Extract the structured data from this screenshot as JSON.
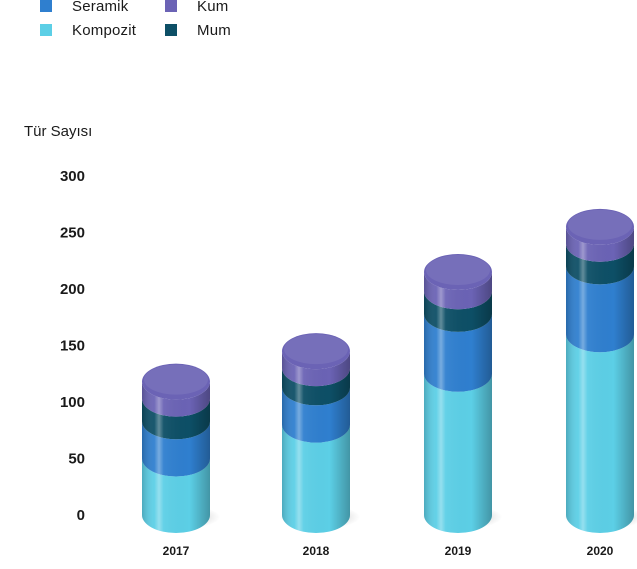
{
  "chart_data": {
    "type": "bar",
    "style": "stacked-3d-cylinder",
    "title": "",
    "xlabel": "",
    "ylabel": "Tür Sayısı",
    "categories": [
      "2017",
      "2018",
      "2019",
      "2020"
    ],
    "ylim": [
      0,
      300
    ],
    "yticks": [
      "0",
      "50",
      "100",
      "150",
      "200",
      "250",
      "300"
    ],
    "series": [
      {
        "name": "Kompozit",
        "color": "#5ccfe6",
        "values": [
          50,
          80,
          125,
          160
        ]
      },
      {
        "name": "Seramik",
        "color": "#2f7fcf",
        "values": [
          33,
          33,
          53,
          60
        ]
      },
      {
        "name": "Mum",
        "color": "#0d4f66",
        "values": [
          20,
          17,
          20,
          20
        ]
      },
      {
        "name": "Kum",
        "color": "#6b63b5",
        "values": [
          15,
          15,
          17,
          15
        ]
      }
    ],
    "legend": {
      "placement": "top-left",
      "order": [
        "Seramik",
        "Kum",
        "Kompozit",
        "Mum"
      ]
    },
    "grid": false
  }
}
